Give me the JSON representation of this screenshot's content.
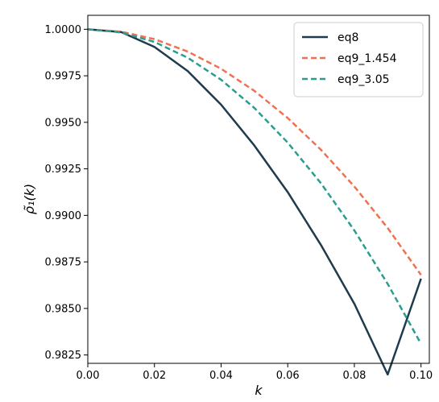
{
  "chart_data": {
    "type": "line",
    "xlabel": "k",
    "ylabel": "ρ̃₁(k)",
    "xlim": [
      0.0,
      0.1025
    ],
    "ylim": [
      0.98205,
      1.00075
    ],
    "grid": false,
    "legend_placement": "top-right",
    "x_ticks": [
      0.0,
      0.02,
      0.04,
      0.06,
      0.08,
      0.1
    ],
    "x_tick_labels": [
      "0.00",
      "0.02",
      "0.04",
      "0.06",
      "0.08",
      "0.10"
    ],
    "y_ticks": [
      0.9825,
      0.985,
      0.9875,
      0.99,
      0.9925,
      0.995,
      0.9975,
      1.0
    ],
    "y_tick_labels": [
      "0.9825",
      "0.9850",
      "0.9875",
      "0.9900",
      "0.9925",
      "0.9950",
      "0.9975",
      "1.0000"
    ],
    "series": [
      {
        "name": "eq8",
        "color": "#1f3b4d",
        "style": "solid",
        "x": [
          0.0,
          0.01,
          0.02,
          0.03,
          0.04,
          0.05,
          0.06,
          0.07,
          0.08,
          0.09,
          0.1
        ],
        "y": [
          1.0,
          0.99985,
          0.99905,
          0.99775,
          0.99595,
          0.99375,
          0.99125,
          0.9884,
          0.98525,
          0.98145,
          0.9866
        ]
      },
      {
        "name": "eq9_1.454",
        "color": "#f07050",
        "style": "dashed",
        "x": [
          0.0,
          0.01,
          0.02,
          0.03,
          0.04,
          0.05,
          0.06,
          0.07,
          0.08,
          0.09,
          0.1
        ],
        "y": [
          1.0,
          0.99987,
          0.99947,
          0.9988,
          0.99788,
          0.99669,
          0.99523,
          0.99352,
          0.99155,
          0.98932,
          0.9868
        ]
      },
      {
        "name": "eq9_3.05",
        "color": "#2a9d8f",
        "style": "dashed",
        "x": [
          0.0,
          0.01,
          0.02,
          0.03,
          0.04,
          0.05,
          0.06,
          0.07,
          0.08,
          0.09,
          0.1
        ],
        "y": [
          1.0,
          0.99983,
          0.99932,
          0.99847,
          0.99729,
          0.99577,
          0.99391,
          0.99172,
          0.98919,
          0.98632,
          0.9831
        ]
      }
    ]
  }
}
